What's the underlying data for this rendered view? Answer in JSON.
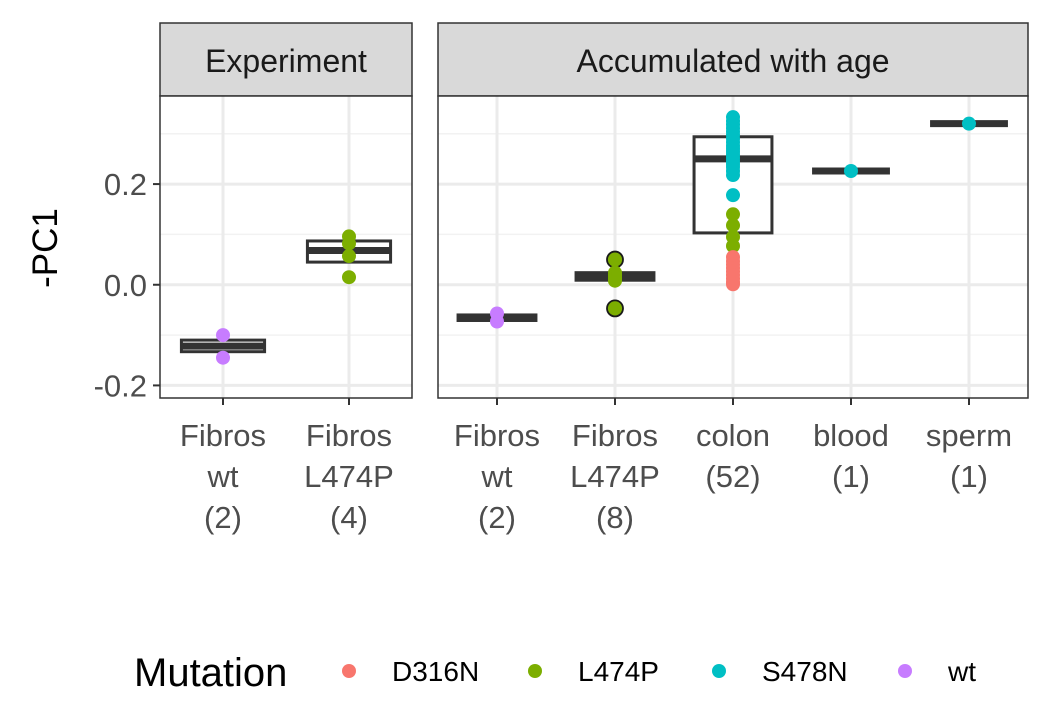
{
  "chart_data": {
    "type": "boxplot",
    "ylabel": "-PC1",
    "ylim": [
      -0.225,
      0.375
    ],
    "yticks": [
      -0.2,
      0.0,
      0.2
    ],
    "ytick_labels": [
      "-0.2",
      "0.0",
      "0.2"
    ],
    "grid": true,
    "legend": {
      "title": "Mutation",
      "placement": "bottom",
      "items": [
        {
          "label": "D316N",
          "color": "#F8766D"
        },
        {
          "label": "L474P",
          "color": "#7CAE00"
        },
        {
          "label": "S478N",
          "color": "#00BFC4"
        },
        {
          "label": "wt",
          "color": "#C77CFF"
        }
      ]
    },
    "panels": [
      {
        "title": "Experiment",
        "groups": [
          {
            "label": [
              "Fibros",
              "wt",
              "(2)"
            ],
            "box": {
              "q1": -0.133,
              "median": -0.122,
              "q3": -0.11
            },
            "points": [
              {
                "y": -0.1,
                "mutation": "wt"
              },
              {
                "y": -0.145,
                "mutation": "wt"
              }
            ]
          },
          {
            "label": [
              "Fibros",
              "L474P",
              "(4)"
            ],
            "box": {
              "q1": 0.045,
              "median": 0.068,
              "q3": 0.087
            },
            "points": [
              {
                "y": 0.096,
                "mutation": "L474P"
              },
              {
                "y": 0.082,
                "mutation": "L474P"
              },
              {
                "y": 0.057,
                "mutation": "L474P"
              },
              {
                "y": 0.015,
                "mutation": "L474P"
              }
            ]
          }
        ]
      },
      {
        "title": "Accumulated with age",
        "groups": [
          {
            "label": [
              "Fibros",
              "wt",
              "(2)"
            ],
            "box": {
              "q1": -0.071,
              "median": -0.065,
              "q3": -0.06
            },
            "points": [
              {
                "y": -0.057,
                "mutation": "wt"
              },
              {
                "y": -0.073,
                "mutation": "wt"
              }
            ]
          },
          {
            "label": [
              "Fibros",
              "L474P",
              "(8)"
            ],
            "box": {
              "q1": 0.009,
              "median": 0.016,
              "q3": 0.024
            },
            "points": [
              {
                "y": 0.05,
                "mutation": "L474P",
                "outlier": true
              },
              {
                "y": 0.024,
                "mutation": "L474P"
              },
              {
                "y": 0.02,
                "mutation": "L474P"
              },
              {
                "y": 0.016,
                "mutation": "L474P"
              },
              {
                "y": 0.012,
                "mutation": "L474P"
              },
              {
                "y": 0.01,
                "mutation": "L474P"
              },
              {
                "y": 0.008,
                "mutation": "L474P"
              },
              {
                "y": -0.047,
                "mutation": "L474P",
                "outlier": true
              }
            ]
          },
          {
            "label": [
              "colon",
              "(52)"
            ],
            "box": {
              "q1": 0.103,
              "median": 0.25,
              "q3": 0.294
            },
            "points": [
              {
                "y": 0.333,
                "mutation": "S478N"
              },
              {
                "y": 0.325,
                "mutation": "S478N"
              },
              {
                "y": 0.318,
                "mutation": "S478N"
              },
              {
                "y": 0.311,
                "mutation": "S478N"
              },
              {
                "y": 0.304,
                "mutation": "S478N"
              },
              {
                "y": 0.297,
                "mutation": "S478N"
              },
              {
                "y": 0.29,
                "mutation": "S478N"
              },
              {
                "y": 0.283,
                "mutation": "S478N"
              },
              {
                "y": 0.276,
                "mutation": "S478N"
              },
              {
                "y": 0.27,
                "mutation": "S478N"
              },
              {
                "y": 0.264,
                "mutation": "S478N"
              },
              {
                "y": 0.258,
                "mutation": "S478N"
              },
              {
                "y": 0.252,
                "mutation": "S478N"
              },
              {
                "y": 0.246,
                "mutation": "S478N"
              },
              {
                "y": 0.24,
                "mutation": "S478N"
              },
              {
                "y": 0.234,
                "mutation": "S478N"
              },
              {
                "y": 0.226,
                "mutation": "S478N"
              },
              {
                "y": 0.218,
                "mutation": "S478N"
              },
              {
                "y": 0.178,
                "mutation": "S478N"
              },
              {
                "y": 0.14,
                "mutation": "L474P"
              },
              {
                "y": 0.118,
                "mutation": "L474P"
              },
              {
                "y": 0.095,
                "mutation": "L474P"
              },
              {
                "y": 0.077,
                "mutation": "L474P"
              },
              {
                "y": 0.055,
                "mutation": "D316N"
              },
              {
                "y": 0.047,
                "mutation": "D316N"
              },
              {
                "y": 0.04,
                "mutation": "D316N"
              },
              {
                "y": 0.033,
                "mutation": "D316N"
              },
              {
                "y": 0.026,
                "mutation": "D316N"
              },
              {
                "y": 0.019,
                "mutation": "D316N"
              },
              {
                "y": 0.012,
                "mutation": "D316N"
              },
              {
                "y": 0.005,
                "mutation": "D316N"
              },
              {
                "y": 0.001,
                "mutation": "D316N"
              }
            ]
          },
          {
            "label": [
              "blood",
              "(1)"
            ],
            "box": {
              "q1": 0.226,
              "median": 0.226,
              "q3": 0.226
            },
            "points": [
              {
                "y": 0.226,
                "mutation": "S478N"
              }
            ]
          },
          {
            "label": [
              "sperm",
              "(1)"
            ],
            "box": {
              "q1": 0.32,
              "median": 0.32,
              "q3": 0.32
            },
            "points": [
              {
                "y": 0.32,
                "mutation": "S478N"
              }
            ]
          }
        ]
      }
    ]
  }
}
